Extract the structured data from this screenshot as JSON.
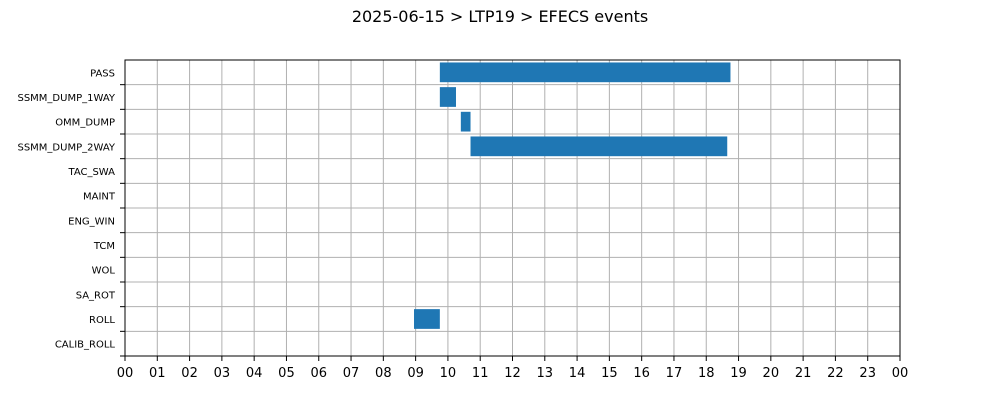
{
  "chart_data": {
    "type": "gantt",
    "title": "2025-06-15 > LTP19 > EFECS events",
    "xlabel": "",
    "ylabel": "",
    "xlim": [
      0,
      24
    ],
    "x_tick_labels": [
      "00",
      "01",
      "02",
      "03",
      "04",
      "05",
      "06",
      "07",
      "08",
      "09",
      "10",
      "11",
      "12",
      "13",
      "14",
      "15",
      "16",
      "17",
      "18",
      "19",
      "20",
      "21",
      "22",
      "23",
      "00"
    ],
    "categories": [
      "PASS",
      "SSMM_DUMP_1WAY",
      "OMM_DUMP",
      "SSMM_DUMP_2WAY",
      "TAC_SWA",
      "MAINT",
      "ENG_WIN",
      "TCM",
      "WOL",
      "SA_ROT",
      "ROLL",
      "CALIB_ROLL"
    ],
    "grid": true,
    "bar_color": "#1f77b4",
    "events": [
      {
        "category": "PASS",
        "start": 9.75,
        "end": 18.75
      },
      {
        "category": "SSMM_DUMP_1WAY",
        "start": 9.75,
        "end": 10.25
      },
      {
        "category": "OMM_DUMP",
        "start": 10.4,
        "end": 10.7
      },
      {
        "category": "SSMM_DUMP_2WAY",
        "start": 10.7,
        "end": 18.65
      },
      {
        "category": "ROLL",
        "start": 8.95,
        "end": 9.75
      }
    ]
  }
}
